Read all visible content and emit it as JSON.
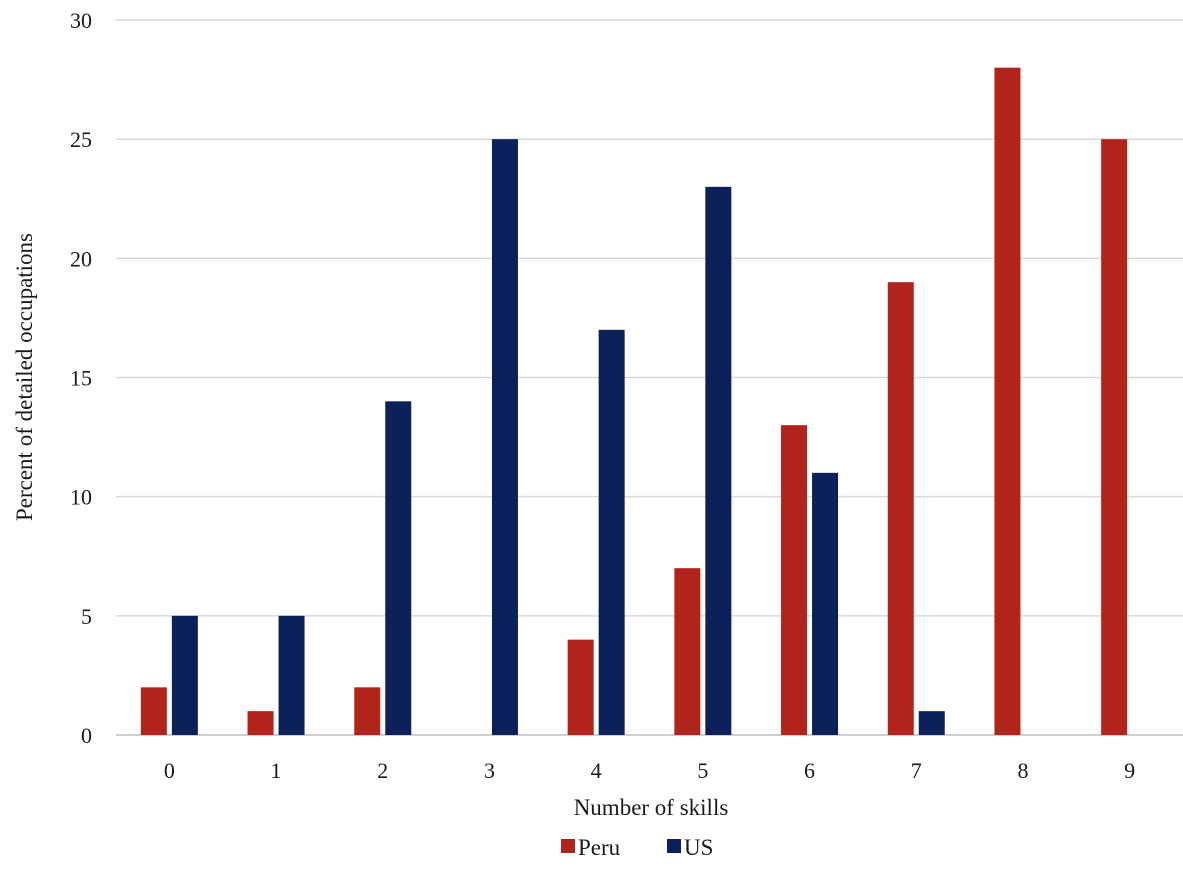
{
  "chart_data": {
    "type": "bar",
    "title": "",
    "xlabel": "Number of skills",
    "ylabel": "Percent of detailed occupations",
    "categories": [
      "0",
      "1",
      "2",
      "3",
      "4",
      "5",
      "6",
      "7",
      "8",
      "9"
    ],
    "series": [
      {
        "name": "Peru",
        "color": "#b0241b",
        "values": [
          2,
          1,
          2,
          0,
          4,
          7,
          13,
          19,
          28,
          25
        ]
      },
      {
        "name": "US",
        "color": "#0c2159",
        "values": [
          5,
          5,
          14,
          25,
          17,
          23,
          11,
          1,
          0,
          0
        ]
      }
    ],
    "ylim": [
      0,
      30
    ],
    "yticks": [
      0,
      5,
      10,
      15,
      20,
      25,
      30
    ],
    "grid": true,
    "legend_position": "bottom"
  }
}
